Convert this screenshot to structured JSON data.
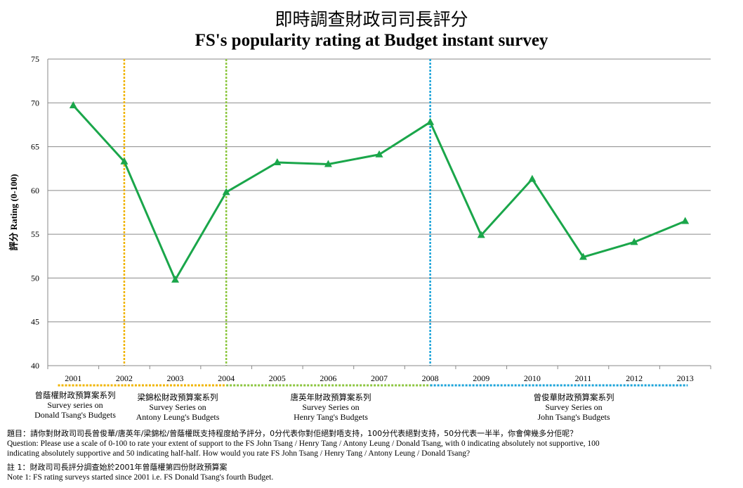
{
  "title_zh": "即時調查財政司司長評分",
  "title_en": "FS's popularity rating at Budget instant survey",
  "chart_data": {
    "type": "line",
    "title": "FS's popularity rating at Budget instant survey",
    "ylabel": "評分 Rating (0-100)",
    "xlabel": "",
    "ylim": [
      40,
      75
    ],
    "yticks": [
      40,
      45,
      50,
      55,
      60,
      65,
      70,
      75
    ],
    "grid": true,
    "categories": [
      "2001",
      "2002",
      "2003",
      "2004",
      "2005",
      "2006",
      "2007",
      "2008",
      "2009",
      "2010",
      "2011",
      "2012",
      "2013"
    ],
    "series": [
      {
        "values": [
          69.7,
          63.3,
          49.8,
          59.8,
          63.2,
          63.0,
          64.1,
          67.8,
          54.9,
          61.3,
          52.4,
          54.1,
          56.5
        ],
        "color": "#1aa64a",
        "marker": "triangle"
      }
    ],
    "vlines": [
      {
        "at": "2002",
        "color": "#f0b400"
      },
      {
        "at": "2004",
        "color": "#8cc63f"
      },
      {
        "at": "2008",
        "color": "#1aa3d9"
      }
    ],
    "segments": [
      {
        "from": "2001",
        "to": "2002",
        "color": "#f0b400"
      },
      {
        "from": "2002",
        "to": "2004",
        "color": "#f0b400"
      },
      {
        "from": "2004",
        "to": "2008",
        "color": "#8cc63f"
      },
      {
        "from": "2008",
        "to": "2013",
        "color": "#1aa3d9"
      }
    ]
  },
  "series_labels": [
    {
      "zh": "曾蔭權財政預算案系列",
      "en1": "Survey series on",
      "en2": "Donald Tsang's Budgets"
    },
    {
      "zh": "梁錦松財政預算案系列",
      "en1": "Survey Series on",
      "en2": "Antony Leung's Budgets"
    },
    {
      "zh": "唐英年財政預算案系列",
      "en1": "Survey Series on",
      "en2": "Henry Tang's Budgets"
    },
    {
      "zh": "曾俊華財政預算案系列",
      "en1": "Survey Series on",
      "en2": "John Tsang's Budgets"
    }
  ],
  "notes": {
    "question_zh": "題目：請你對財政司司長曾俊華/唐英年/梁錦松/曾蔭權既支持程度給予評分，0分代表你對佢絕對唔支持，100分代表絕對支持，50分代表一半半，你會俾幾多分佢呢？",
    "question_en_1": "Question: Please use a scale of 0-100 to rate your extent of support to the FS John Tsang / Henry Tang /  Antony Leung / Donald Tsang, with 0 indicating absolutely not supportive, 100",
    "question_en_2": "indicating absolutely supportive and 50 indicating half-half.  How would you rate FS John Tsang / Henry Tang /  Antony Leung / Donald Tsang?",
    "note_zh": "註 1：財政司司長評分調查始於2001年曾蔭權第四份財政預算案",
    "note_en": "Note 1: FS rating surveys started since 2001 i.e. FS Donald Tsang's fourth Budget."
  }
}
